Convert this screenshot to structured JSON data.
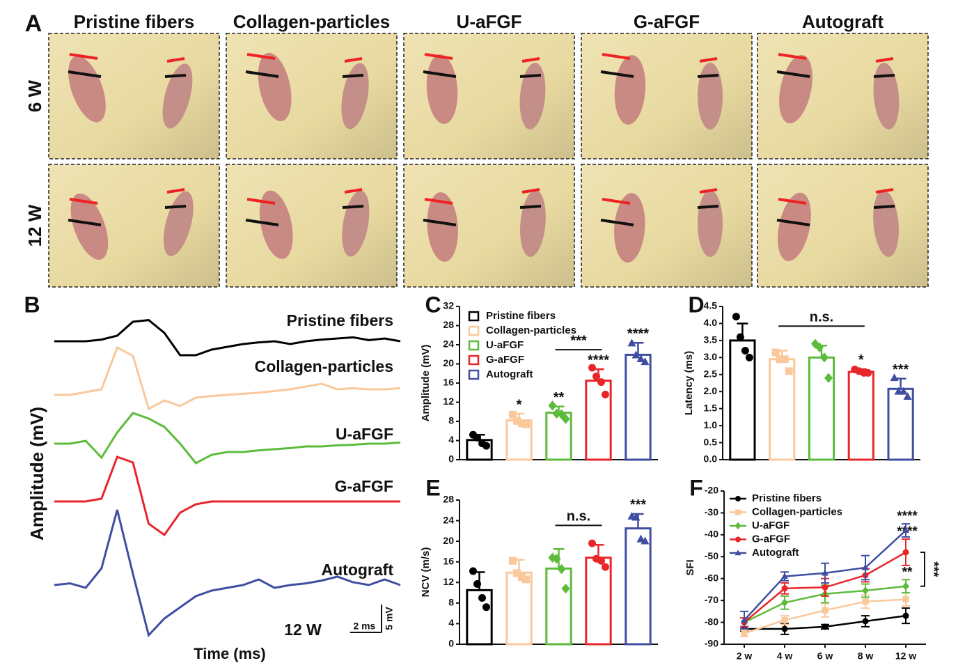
{
  "panel_a": {
    "label": "A",
    "columns": [
      "Pristine fibers",
      "Collagen-particles",
      "U-aFGF",
      "G-aFGF",
      "Autograft"
    ],
    "rows": [
      "6 W",
      "12 W"
    ]
  },
  "chart_data": [
    {
      "type": "trace",
      "label": "B",
      "xlabel": "Time (ms)",
      "ylabel": "Amplitude (mV)",
      "annotation": "12 W",
      "scale_bar": {
        "x": {
          "value": 2,
          "label": "2 ms"
        },
        "y": {
          "value": 5,
          "label": "5 mV"
        }
      },
      "x": [
        0,
        1,
        2,
        3,
        4,
        5,
        6,
        7,
        8,
        9,
        10,
        11,
        12,
        13,
        14,
        15,
        16,
        17,
        18,
        19,
        20,
        21,
        22
      ],
      "series": [
        {
          "name": "Pristine fibers",
          "color": "#000000",
          "values": [
            0,
            0,
            0,
            0.3,
            1,
            3.5,
            3.8,
            1.5,
            -2.5,
            -2.5,
            -1.5,
            -1,
            -0.5,
            -0.2,
            0,
            -0.5,
            0,
            0.3,
            0.5,
            0.7,
            0.2,
            0.5,
            0
          ]
        },
        {
          "name": "Collagen-particles",
          "color": "#f9c89b",
          "values": [
            0,
            0,
            0.5,
            1,
            8.5,
            7,
            -2.5,
            -1,
            -2,
            -0.5,
            -0.2,
            0,
            0.2,
            0.4,
            0.7,
            1,
            1.5,
            2,
            1,
            1.2,
            1,
            1,
            1.2
          ]
        },
        {
          "name": "U-aFGF",
          "color": "#5dbb3b",
          "values": [
            0,
            0,
            0.5,
            -2.5,
            2,
            5.5,
            4.5,
            3,
            0,
            -3.5,
            -2,
            -1.5,
            -1.5,
            -1.2,
            -1,
            -0.8,
            -0.5,
            -0.5,
            -0.3,
            -0.2,
            0,
            0,
            0.2
          ]
        },
        {
          "name": "G-aFGF",
          "color": "#e8262a",
          "values": [
            0,
            0,
            0,
            0.5,
            8,
            7,
            -4,
            -6,
            -2,
            -0.5,
            0,
            0,
            0,
            0,
            0,
            0,
            0,
            0,
            0,
            0,
            0,
            0,
            0
          ]
        },
        {
          "name": "Autograft",
          "color": "#3f4ea0",
          "values": [
            0,
            0.3,
            -0.5,
            3,
            13.5,
            2,
            -9,
            -6,
            -4,
            -2,
            -1,
            -0.5,
            0,
            1,
            -0.5,
            0,
            0.3,
            0.8,
            1.5,
            0.5,
            0,
            1,
            0
          ]
        }
      ]
    },
    {
      "type": "bar",
      "label": "C",
      "ylabel": "Amplitude (mV)",
      "legend": "upper left",
      "categories": [
        "Pristine fibers",
        "Collagen-particles",
        "U-aFGF",
        "G-aFGF",
        "Autograft"
      ],
      "colors": [
        "#000000",
        "#f9c89b",
        "#5dbb3b",
        "#e8262a",
        "#3f4ea0"
      ],
      "markers": [
        "circle",
        "square",
        "diamond",
        "circle",
        "triangle"
      ],
      "values": [
        4.1,
        8.2,
        9.8,
        16.5,
        21.9
      ],
      "errors": [
        1.1,
        1.4,
        1.3,
        2.4,
        2.5
      ],
      "points": [
        [
          5.2,
          4.6,
          3.4,
          2.9
        ],
        [
          9.4,
          8.1,
          7.6,
          7.4
        ],
        [
          11.3,
          9.6,
          9.5,
          8.5
        ],
        [
          19.2,
          17.4,
          16.2,
          13.6
        ],
        [
          24.3,
          21.8,
          21.0,
          20.4
        ]
      ],
      "significance": [
        null,
        "*",
        "**",
        "****",
        "****"
      ],
      "brackets": [
        {
          "text": "***",
          "between": [
            2,
            3
          ]
        }
      ],
      "ylim": [
        0,
        32
      ],
      "yticks": [
        0,
        4,
        8,
        12,
        16,
        20,
        24,
        28,
        32
      ]
    },
    {
      "type": "bar",
      "label": "D",
      "ylabel": "Latency (ms)",
      "categories": [
        null,
        null,
        null,
        null,
        null
      ],
      "colors": [
        "#000000",
        "#f9c89b",
        "#5dbb3b",
        "#e8262a",
        "#3f4ea0"
      ],
      "markers": [
        "circle",
        "square",
        "diamond",
        "circle",
        "triangle"
      ],
      "values": [
        3.5,
        2.95,
        3.0,
        2.58,
        2.08
      ],
      "errors": [
        0.5,
        0.25,
        0.35,
        0.08,
        0.3
      ],
      "points": [
        [
          4.2,
          3.6,
          3.2,
          3.0
        ],
        [
          3.15,
          2.95,
          2.95,
          2.6
        ],
        [
          3.4,
          3.3,
          3.0,
          2.4
        ],
        [
          2.65,
          2.6,
          2.55,
          2.55
        ],
        [
          2.4,
          2.0,
          2.0,
          1.85
        ]
      ],
      "significance": [
        null,
        null,
        null,
        "*",
        "***"
      ],
      "brackets": [
        {
          "text": "n.s.",
          "between": [
            1,
            3
          ]
        }
      ],
      "ylim": [
        0,
        4.5
      ],
      "yticks": [
        {
          "value": 0,
          "label": "0.0"
        },
        0.5,
        {
          "value": 1,
          "label": "1.0"
        },
        1.5,
        {
          "value": 2,
          "label": "2.0"
        },
        2.5,
        {
          "value": 3,
          "label": "3.0"
        },
        3.5,
        {
          "value": 4,
          "label": "4.0"
        },
        4.5
      ]
    },
    {
      "type": "bar",
      "label": "E",
      "ylabel": "NCV (m/s)",
      "categories": [
        null,
        null,
        null,
        null,
        null
      ],
      "colors": [
        "#000000",
        "#f9c89b",
        "#5dbb3b",
        "#e8262a",
        "#3f4ea0"
      ],
      "markers": [
        "circle",
        "square",
        "diamond",
        "circle",
        "triangle"
      ],
      "values": [
        10.5,
        13.9,
        14.7,
        16.8,
        22.5
      ],
      "errors": [
        3.5,
        2.5,
        3.8,
        2.5,
        2.8
      ],
      "points": [
        [
          14.2,
          11.7,
          9.0,
          7.2
        ],
        [
          16.2,
          13.8,
          13.0,
          12.6
        ],
        [
          16.8,
          16.6,
          14.6,
          10.8
        ],
        [
          19.6,
          16.6,
          16.2,
          15.0
        ],
        [
          24.8,
          24.6,
          20.4,
          20.0
        ]
      ],
      "significance": [
        null,
        null,
        null,
        null,
        "***"
      ],
      "brackets": [
        {
          "text": "n.s.",
          "between": [
            2,
            3
          ]
        }
      ],
      "ylim": [
        0,
        28
      ],
      "yticks": [
        0,
        4,
        8,
        12,
        16,
        20,
        24,
        28
      ]
    },
    {
      "type": "line",
      "label": "F",
      "ylabel": "SFI",
      "legend": "upper left",
      "categories": [
        "2 w",
        "4 w",
        "6 w",
        "8 w",
        "12 w"
      ],
      "series": [
        {
          "name": "Pristine fibers",
          "color": "#000000",
          "marker": "circle",
          "values": [
            -83,
            -83,
            -82,
            -79.5,
            -77
          ],
          "errors": [
            1,
            2.5,
            1,
            2.5,
            3.5
          ]
        },
        {
          "name": "Collagen-particles",
          "color": "#f9c89b",
          "marker": "square",
          "values": [
            -85,
            -79,
            -74.5,
            -70.5,
            -69.5
          ],
          "errors": [
            1.5,
            2,
            3,
            3,
            3
          ]
        },
        {
          "name": "U-aFGF",
          "color": "#5dbb3b",
          "marker": "diamond",
          "values": [
            -80,
            -71,
            -67,
            -65.5,
            -63.5
          ],
          "errors": [
            2,
            3,
            4,
            3,
            3
          ],
          "significance": "**"
        },
        {
          "name": "G-aFGF",
          "color": "#e8262a",
          "marker": "circle",
          "values": [
            -80,
            -64.5,
            -64,
            -58.5,
            -48
          ],
          "errors": [
            2,
            2.5,
            4,
            3,
            6
          ],
          "significance": "****"
        },
        {
          "name": "Autograft",
          "color": "#3f4ea0",
          "marker": "triangle",
          "values": [
            -79,
            -59,
            -57.5,
            -55,
            -38
          ],
          "errors": [
            4,
            2,
            4.5,
            5.5,
            3
          ],
          "significance": "****"
        }
      ],
      "brackets": [
        {
          "text": "***",
          "between": [
            2,
            3
          ]
        }
      ],
      "ylim": [
        -90,
        -20
      ],
      "yticks": [
        -90,
        -80,
        -70,
        -60,
        -50,
        -40,
        -30,
        -20
      ]
    }
  ]
}
